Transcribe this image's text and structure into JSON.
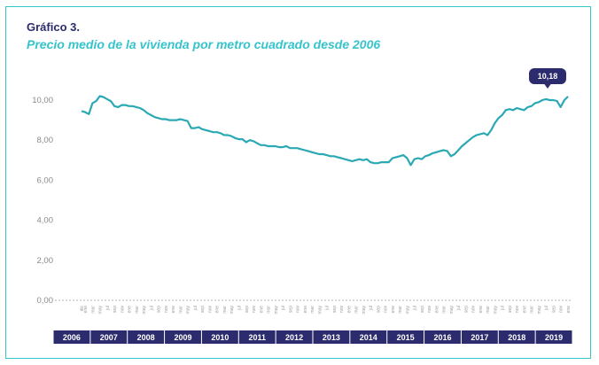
{
  "header": {
    "title": "Gráfico 3.",
    "subtitle": "Precio medio de la vivienda por metro cuadrado desde 2006"
  },
  "colors": {
    "line": "#2aa9b4",
    "title": "#2c2b6d",
    "subtitle": "#35c3cc",
    "year_band": "#2c2b6d",
    "callout": "#2c2b6d",
    "border": "#35c3cc"
  },
  "chart_data": {
    "type": "line",
    "title": "Precio medio de la vivienda por metro cuadrado desde 2006",
    "ylim": [
      0,
      10.5
    ],
    "yticks": [
      "0,00",
      "2,00",
      "4,00",
      "6,00",
      "8,00",
      "10,00"
    ],
    "years": [
      "2006",
      "2007",
      "2008",
      "2009",
      "2010",
      "2011",
      "2012",
      "2013",
      "2014",
      "2015",
      "2016",
      "2017",
      "2018",
      "2019"
    ],
    "month_tick_labels": [
      "ene",
      "mar",
      "may",
      "jul",
      "sep",
      "nov"
    ],
    "first_tick_label": "dic",
    "annotation": {
      "label": "10,18",
      "value": 10.18
    },
    "series": [
      {
        "values": [
          9.45,
          9.4,
          9.3,
          9.85,
          9.95,
          10.2,
          10.15,
          10.05,
          9.95,
          9.7,
          9.65,
          9.75,
          9.75,
          9.7,
          9.7,
          9.65,
          9.6,
          9.5,
          9.35,
          9.25,
          9.15,
          9.1,
          9.05,
          9.05,
          9.0,
          9.0,
          9.0,
          9.05,
          9.0,
          8.95,
          8.6,
          8.6,
          8.65,
          8.55,
          8.5,
          8.45,
          8.4,
          8.4,
          8.35,
          8.25,
          8.25,
          8.2,
          8.1,
          8.05,
          8.05,
          7.9,
          8.0,
          7.95,
          7.85,
          7.75,
          7.75,
          7.7,
          7.7,
          7.7,
          7.65,
          7.65,
          7.7,
          7.6,
          7.6,
          7.6,
          7.55,
          7.5,
          7.45,
          7.4,
          7.35,
          7.3,
          7.3,
          7.25,
          7.2,
          7.2,
          7.15,
          7.1,
          7.05,
          7.0,
          6.95,
          7.0,
          7.05,
          7.0,
          7.05,
          6.9,
          6.85,
          6.85,
          6.9,
          6.9,
          6.9,
          7.1,
          7.15,
          7.2,
          7.25,
          7.1,
          6.75,
          7.05,
          7.1,
          7.05,
          7.2,
          7.25,
          7.35,
          7.4,
          7.45,
          7.5,
          7.45,
          7.2,
          7.3,
          7.5,
          7.7,
          7.85,
          8.0,
          8.15,
          8.25,
          8.3,
          8.35,
          8.25,
          8.5,
          8.85,
          9.1,
          9.25,
          9.5,
          9.55,
          9.5,
          9.6,
          9.55,
          9.5,
          9.65,
          9.7,
          9.85,
          9.9,
          10.0,
          10.05,
          10.0,
          10.0,
          9.95,
          9.65,
          10.0,
          10.18
        ]
      }
    ]
  }
}
